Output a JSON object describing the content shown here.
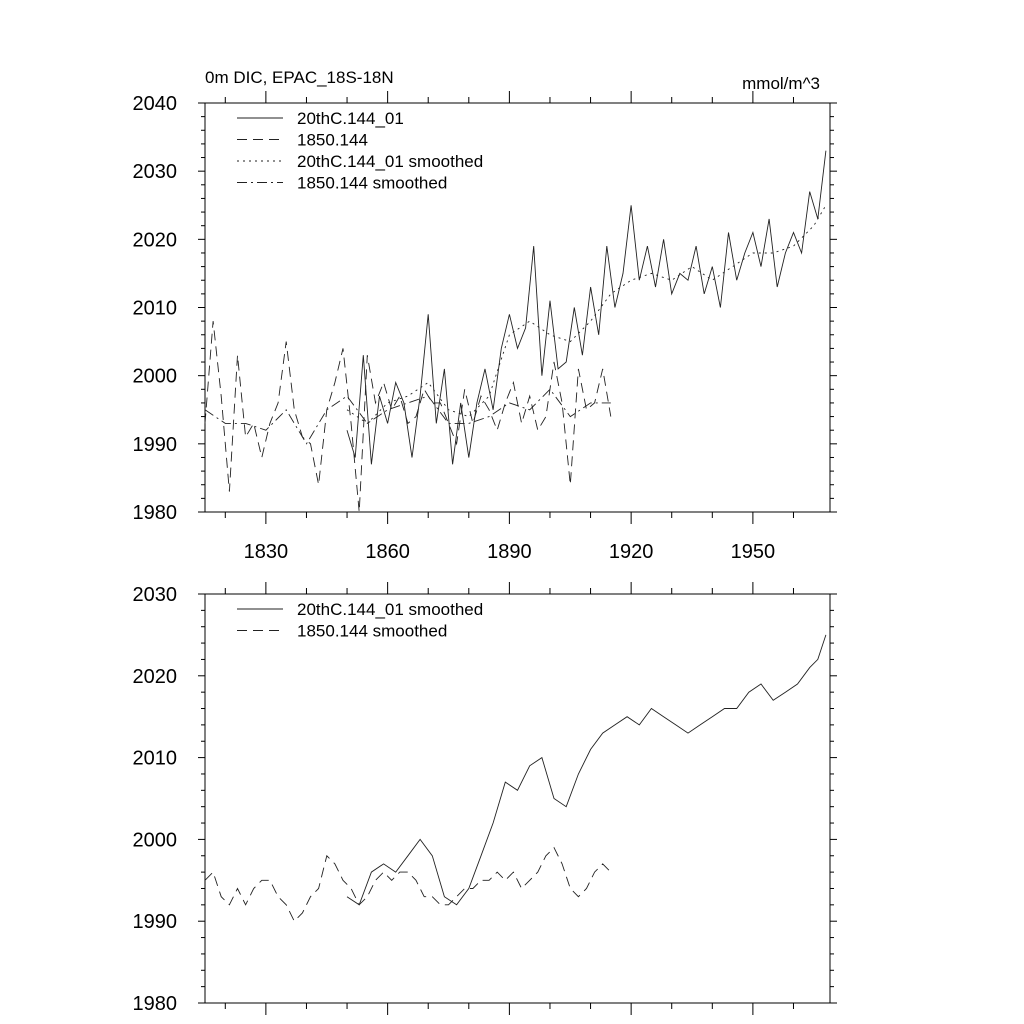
{
  "chart_data": [
    {
      "type": "line",
      "title": "0m DIC, EPAC_18S-18N",
      "units": "mmol/m^3",
      "xlabel": "",
      "ylabel": "",
      "xlim": [
        1815,
        1969
      ],
      "ylim": [
        1980,
        2040
      ],
      "x_ticks": [
        1830,
        1860,
        1890,
        1920,
        1950
      ],
      "x_tick_labels": [
        "1830",
        "1860",
        "1890",
        "1920",
        "1950"
      ],
      "y_ticks": [
        1980,
        1990,
        2000,
        2010,
        2020,
        2030,
        2040
      ],
      "y_tick_labels": [
        "1980",
        "1990",
        "2000",
        "2010",
        "2020",
        "2030",
        "2040"
      ],
      "grid": false,
      "legend": "top-left",
      "series": [
        {
          "name": "20thC.144_01",
          "style": "solid",
          "x": [
            1850,
            1852,
            1854,
            1856,
            1858,
            1860,
            1862,
            1864,
            1866,
            1868,
            1870,
            1872,
            1874,
            1876,
            1878,
            1880,
            1882,
            1884,
            1886,
            1888,
            1890,
            1892,
            1894,
            1896,
            1898,
            1900,
            1902,
            1904,
            1906,
            1908,
            1910,
            1912,
            1914,
            1916,
            1918,
            1920,
            1922,
            1924,
            1926,
            1928,
            1930,
            1932,
            1934,
            1936,
            1938,
            1940,
            1942,
            1944,
            1946,
            1948,
            1950,
            1952,
            1954,
            1956,
            1958,
            1960,
            1962,
            1964,
            1966,
            1968
          ],
          "values": [
            1992,
            1988,
            2003,
            1987,
            1997,
            1993,
            1999,
            1996,
            1988,
            1997,
            2009,
            1993,
            2001,
            1987,
            1996,
            1988,
            1996,
            2001,
            1995,
            2004,
            2009,
            2004,
            2007,
            2019,
            2000,
            2011,
            2001,
            2002,
            2010,
            2003,
            2013,
            2006,
            2019,
            2010,
            2015,
            2025,
            2014,
            2019,
            2013,
            2020,
            2012,
            2015,
            2014,
            2019,
            2012,
            2016,
            2010,
            2021,
            2014,
            2018,
            2021,
            2016,
            2023,
            2013,
            2018,
            2021,
            2018,
            2027,
            2023,
            2033
          ]
        },
        {
          "name": "1850.144",
          "style": "dashed",
          "x": [
            1815,
            1817,
            1819,
            1821,
            1823,
            1825,
            1827,
            1829,
            1831,
            1833,
            1835,
            1837,
            1839,
            1841,
            1843,
            1845,
            1847,
            1849,
            1851,
            1853,
            1855,
            1857,
            1859,
            1861,
            1863,
            1865,
            1867,
            1869,
            1871,
            1873,
            1875,
            1877,
            1879,
            1881,
            1883,
            1885,
            1887,
            1889,
            1891,
            1893,
            1895,
            1897,
            1899,
            1901,
            1903,
            1905,
            1907,
            1909,
            1911,
            1913,
            1915
          ],
          "values": [
            1993,
            2008,
            1997,
            1983,
            2003,
            1991,
            1993,
            1988,
            1993,
            1996,
            2005,
            1995,
            1991,
            1990,
            1984,
            1995,
            1999,
            2004,
            1993,
            1980,
            2003,
            1996,
            1999,
            1995,
            1997,
            1993,
            1994,
            1998,
            1996,
            1996,
            1993,
            1990,
            1998,
            1993,
            1997,
            1995,
            1992,
            1996,
            1999,
            1993,
            1997,
            1992,
            1994,
            2002,
            1996,
            1984,
            2001,
            1995,
            1996,
            2001,
            1994
          ]
        },
        {
          "name": "20thC.144_01 smoothed",
          "style": "dotted",
          "x": [
            1850,
            1855,
            1860,
            1865,
            1870,
            1875,
            1880,
            1885,
            1890,
            1895,
            1900,
            1905,
            1910,
            1915,
            1920,
            1925,
            1930,
            1935,
            1940,
            1945,
            1950,
            1955,
            1960,
            1965,
            1968
          ],
          "values": [
            1995,
            1993,
            1996,
            1997,
            1999,
            1995,
            1994,
            1997,
            2006,
            2008,
            2006,
            2005,
            2008,
            2012,
            2014,
            2015,
            2014,
            2016,
            2014,
            2016,
            2018,
            2018,
            2019,
            2022,
            2025
          ]
        },
        {
          "name": "1850.144 smoothed",
          "style": "dashdot",
          "x": [
            1815,
            1820,
            1825,
            1830,
            1835,
            1840,
            1845,
            1850,
            1855,
            1860,
            1865,
            1870,
            1875,
            1880,
            1885,
            1890,
            1895,
            1900,
            1905,
            1910,
            1915
          ],
          "values": [
            1995,
            1993,
            1993,
            1992,
            1995,
            1990,
            1995,
            1997,
            1993,
            1995,
            1996,
            1997,
            1993,
            1993,
            1994,
            1996,
            1995,
            1998,
            1994,
            1996,
            1996
          ]
        }
      ]
    },
    {
      "type": "line",
      "title": "",
      "xlabel": "",
      "ylabel": "",
      "xlim": [
        1815,
        1969
      ],
      "ylim": [
        1980,
        2030
      ],
      "x_ticks": [
        1830,
        1860,
        1890,
        1920,
        1950
      ],
      "y_ticks": [
        1980,
        1990,
        2000,
        2010,
        2020,
        2030
      ],
      "y_tick_labels": [
        "1980",
        "1990",
        "2000",
        "2010",
        "2020",
        "2030"
      ],
      "grid": false,
      "legend": "top-left",
      "series": [
        {
          "name": "20thC.144_01 smoothed",
          "style": "solid",
          "x": [
            1850,
            1853,
            1856,
            1859,
            1862,
            1865,
            1868,
            1871,
            1874,
            1877,
            1880,
            1883,
            1886,
            1889,
            1892,
            1895,
            1898,
            1901,
            1904,
            1907,
            1910,
            1913,
            1916,
            1919,
            1922,
            1925,
            1928,
            1931,
            1934,
            1937,
            1940,
            1943,
            1946,
            1949,
            1952,
            1955,
            1958,
            1961,
            1964,
            1966,
            1968
          ],
          "values": [
            1993,
            1992,
            1996,
            1997,
            1996,
            1998,
            2000,
            1998,
            1993,
            1992,
            1994,
            1998,
            2002,
            2007,
            2006,
            2009,
            2010,
            2005,
            2004,
            2008,
            2011,
            2013,
            2014,
            2015,
            2014,
            2016,
            2015,
            2014,
            2013,
            2014,
            2015,
            2016,
            2016,
            2018,
            2019,
            2017,
            2018,
            2019,
            2021,
            2022,
            2025
          ]
        },
        {
          "name": "1850.144 smoothed",
          "style": "dashed",
          "x": [
            1815,
            1817,
            1819,
            1821,
            1823,
            1825,
            1827,
            1829,
            1831,
            1833,
            1835,
            1837,
            1839,
            1841,
            1843,
            1845,
            1847,
            1849,
            1851,
            1853,
            1855,
            1857,
            1859,
            1861,
            1863,
            1865,
            1867,
            1869,
            1871,
            1873,
            1875,
            1877,
            1879,
            1881,
            1883,
            1885,
            1887,
            1889,
            1891,
            1893,
            1895,
            1897,
            1899,
            1901,
            1903,
            1905,
            1907,
            1909,
            1911,
            1913,
            1915
          ],
          "values": [
            1995,
            1996,
            1993,
            1992,
            1994,
            1992,
            1994,
            1995,
            1995,
            1993,
            1992,
            1990,
            1991,
            1993,
            1994,
            1998,
            1997,
            1995,
            1994,
            1992,
            1993,
            1995,
            1996,
            1995,
            1996,
            1996,
            1995,
            1993,
            1993,
            1992,
            1992,
            1993,
            1994,
            1994,
            1995,
            1995,
            1996,
            1995,
            1996,
            1994,
            1995,
            1996,
            1998,
            1999,
            1997,
            1994,
            1993,
            1994,
            1996,
            1997,
            1996
          ]
        }
      ]
    }
  ]
}
